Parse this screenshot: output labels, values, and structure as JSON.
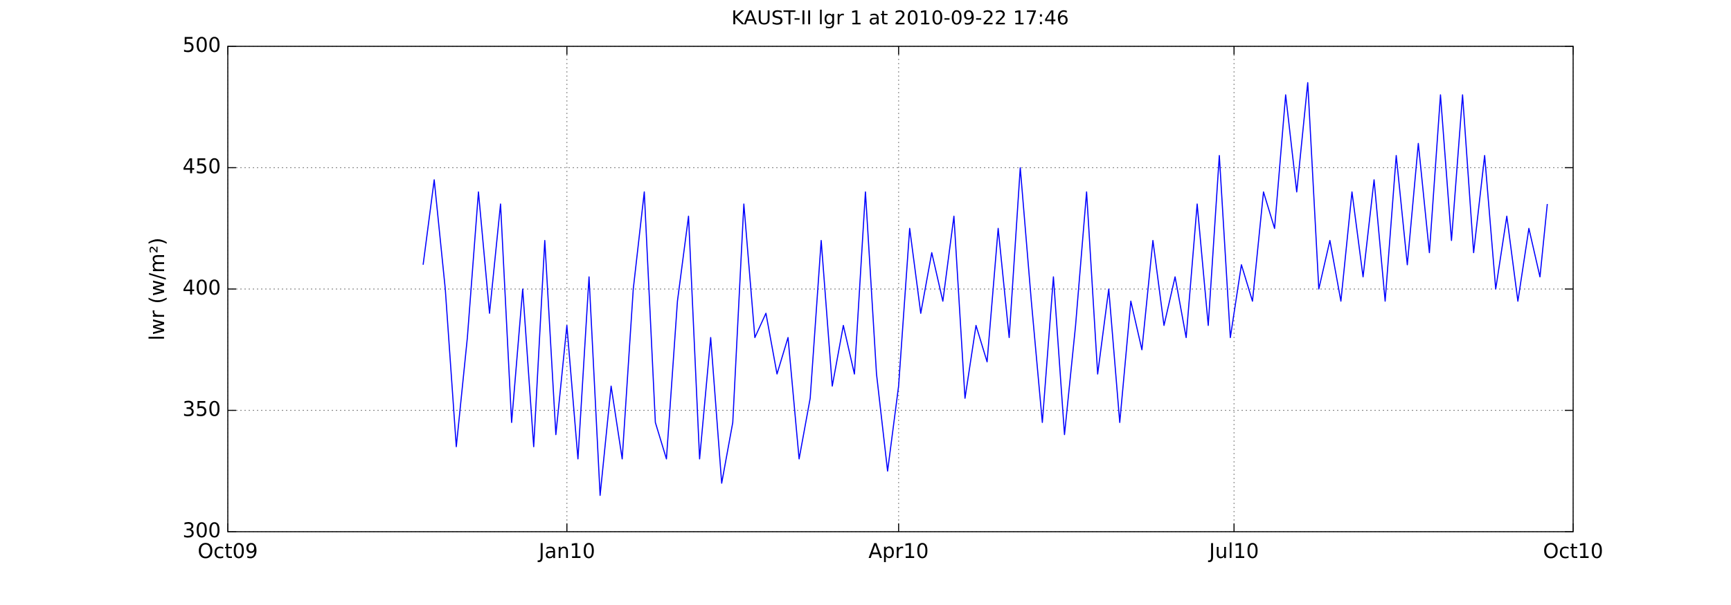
{
  "chart_data": {
    "type": "line",
    "title": "KAUST-II lgr 1 at 2010-09-22 17:46",
    "y_label": "lwr (w/m²)",
    "x": [
      "2009-11-23",
      "2009-11-26",
      "2009-11-29",
      "2009-12-02",
      "2009-12-05",
      "2009-12-08",
      "2009-12-11",
      "2009-12-14",
      "2009-12-17",
      "2009-12-20",
      "2009-12-23",
      "2009-12-26",
      "2009-12-29",
      "2010-01-01",
      "2010-01-04",
      "2010-01-07",
      "2010-01-10",
      "2010-01-13",
      "2010-01-16",
      "2010-01-19",
      "2010-01-22",
      "2010-01-25",
      "2010-01-28",
      "2010-01-31",
      "2010-02-03",
      "2010-02-06",
      "2010-02-09",
      "2010-02-12",
      "2010-02-15",
      "2010-02-18",
      "2010-02-21",
      "2010-02-24",
      "2010-02-27",
      "2010-03-02",
      "2010-03-05",
      "2010-03-08",
      "2010-03-11",
      "2010-03-14",
      "2010-03-17",
      "2010-03-20",
      "2010-03-23",
      "2010-03-26",
      "2010-03-29",
      "2010-04-01",
      "2010-04-04",
      "2010-04-07",
      "2010-04-10",
      "2010-04-13",
      "2010-04-16",
      "2010-04-19",
      "2010-04-22",
      "2010-04-25",
      "2010-04-28",
      "2010-05-01",
      "2010-05-04",
      "2010-05-07",
      "2010-05-10",
      "2010-05-13",
      "2010-05-16",
      "2010-05-19",
      "2010-05-22",
      "2010-05-25",
      "2010-05-28",
      "2010-05-31",
      "2010-06-03",
      "2010-06-06",
      "2010-06-09",
      "2010-06-12",
      "2010-06-15",
      "2010-06-18",
      "2010-06-21",
      "2010-06-24",
      "2010-06-27",
      "2010-06-30",
      "2010-07-03",
      "2010-07-06",
      "2010-07-09",
      "2010-07-12",
      "2010-07-15",
      "2010-07-18",
      "2010-07-21",
      "2010-07-24",
      "2010-07-27",
      "2010-07-30",
      "2010-08-02",
      "2010-08-05",
      "2010-08-08",
      "2010-08-11",
      "2010-08-14",
      "2010-08-17",
      "2010-08-20",
      "2010-08-23",
      "2010-08-26",
      "2010-08-29",
      "2010-09-01",
      "2010-09-04",
      "2010-09-07",
      "2010-09-10",
      "2010-09-13",
      "2010-09-16",
      "2010-09-19",
      "2010-09-22",
      "2010-09-24"
    ],
    "series": [
      {
        "name": "lwr",
        "color": "#0000ff",
        "values": [
          410,
          445,
          400,
          335,
          380,
          440,
          390,
          435,
          345,
          400,
          335,
          420,
          340,
          385,
          330,
          405,
          315,
          360,
          330,
          400,
          440,
          345,
          330,
          395,
          430,
          330,
          380,
          320,
          345,
          435,
          380,
          390,
          365,
          380,
          330,
          355,
          420,
          360,
          385,
          365,
          440,
          365,
          325,
          360,
          425,
          390,
          415,
          395,
          430,
          355,
          385,
          370,
          425,
          380,
          450,
          395,
          345,
          405,
          340,
          385,
          440,
          365,
          400,
          345,
          395,
          375,
          420,
          385,
          405,
          380,
          435,
          385,
          455,
          380,
          410,
          395,
          440,
          425,
          480,
          440,
          485,
          400,
          420,
          395,
          440,
          405,
          445,
          395,
          455,
          410,
          460,
          415,
          480,
          420,
          480,
          415,
          455,
          400,
          430,
          395,
          425,
          405,
          435
        ]
      }
    ],
    "xlim": [
      "2009-10-01",
      "2010-10-01"
    ],
    "xticks": [
      {
        "value": "2009-10-01",
        "label": "Oct09"
      },
      {
        "value": "2010-01-01",
        "label": "Jan10"
      },
      {
        "value": "2010-04-01",
        "label": "Apr10"
      },
      {
        "value": "2010-07-01",
        "label": "Jul10"
      },
      {
        "value": "2010-10-01",
        "label": "Oct10"
      }
    ],
    "ylim": [
      300,
      500
    ],
    "yticks": [
      300,
      350,
      400,
      450,
      500
    ],
    "grid": true
  }
}
